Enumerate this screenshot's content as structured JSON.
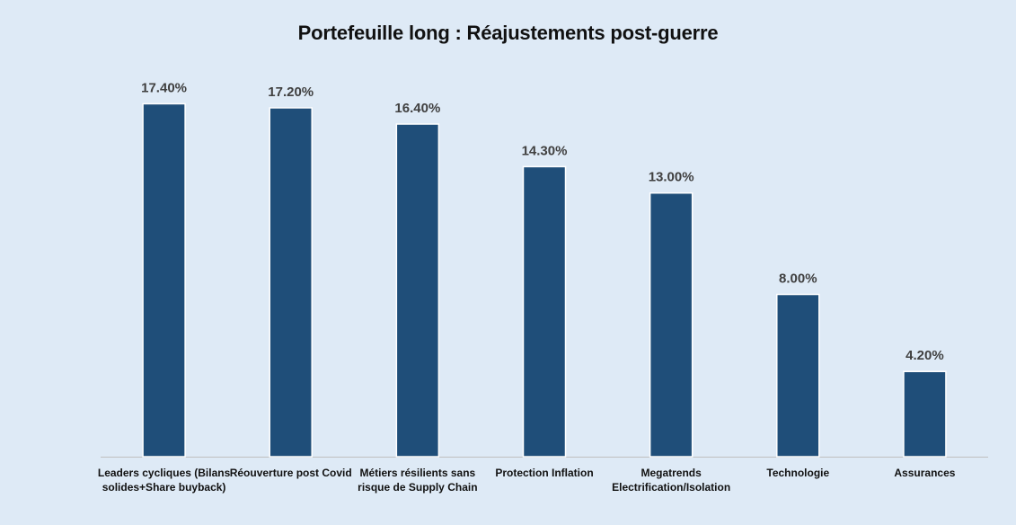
{
  "chart_data": {
    "type": "bar",
    "title": "Portefeuille long : Réajustements post-guerre",
    "xlabel": "",
    "ylabel": "",
    "ylim": [
      0,
      18.7
    ],
    "grid": false,
    "legend": "none",
    "bar_color": "#1f4e79",
    "background_color": "#deeaf6",
    "categories": [
      [
        "Leaders cycliques (Bilans",
        "solides+Share buyback)"
      ],
      [
        "Réouverture post Covid"
      ],
      [
        "Métiers résilients sans",
        "risque de Supply Chain"
      ],
      [
        "Protection Inflation"
      ],
      [
        "Megatrends",
        "Electrification/Isolation"
      ],
      [
        "Technologie"
      ],
      [
        "Assurances"
      ]
    ],
    "values": [
      17.4,
      17.2,
      16.4,
      14.3,
      13.0,
      8.0,
      4.2
    ],
    "data_labels": [
      "17.40%",
      "17.20%",
      "16.40%",
      "14.30%",
      "13.00%",
      "8.00%",
      "4.20%"
    ]
  }
}
